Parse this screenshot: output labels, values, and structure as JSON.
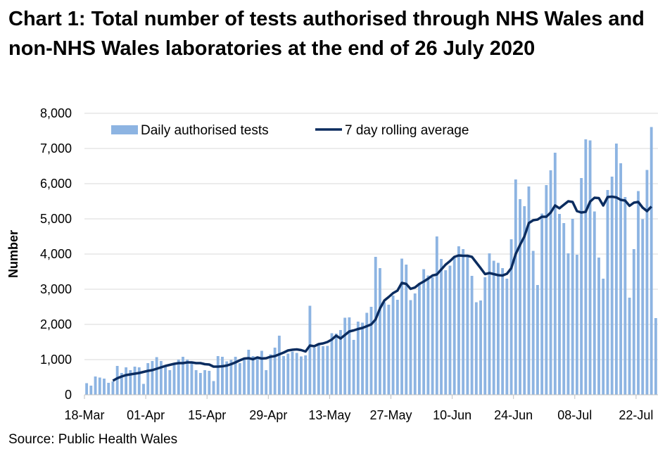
{
  "chart_data": {
    "type": "bar",
    "title": "Chart 1: Total number of tests authorised through NHS Wales and non-NHS Wales laboratories at the end of 26 July 2020",
    "source": "Source: Public Health Wales",
    "ylabel": "Number",
    "ylim": [
      0,
      8000
    ],
    "yticks": [
      "0",
      "1,000",
      "2,000",
      "3,000",
      "4,000",
      "5,000",
      "6,000",
      "7,000",
      "8,000"
    ],
    "ytick_values": [
      0,
      1000,
      2000,
      3000,
      4000,
      5000,
      6000,
      7000,
      8000
    ],
    "xticks": [
      "18-Mar",
      "01-Apr",
      "15-Apr",
      "29-Apr",
      "13-May",
      "27-May",
      "10-Jun",
      "24-Jun",
      "08-Jul",
      "22-Jul"
    ],
    "xtick_day_index": [
      0,
      14,
      28,
      42,
      56,
      70,
      84,
      98,
      112,
      126
    ],
    "start_label": "18-Mar",
    "end_label": "26-Jul",
    "legend": [
      "Daily authorised tests",
      "7 day rolling average"
    ],
    "legend_position": "top",
    "colors": {
      "bars": "#8db4e2",
      "line": "#0b2c5f"
    },
    "series": [
      {
        "name": "Daily authorised tests",
        "type": "bar",
        "values": [
          330,
          260,
          520,
          490,
          460,
          340,
          380,
          820,
          620,
          780,
          700,
          800,
          780,
          310,
          900,
          960,
          1070,
          960,
          820,
          700,
          850,
          1000,
          1080,
          1000,
          900,
          700,
          620,
          700,
          680,
          390,
          1100,
          1080,
          950,
          990,
          1080,
          900,
          1040,
          1280,
          1100,
          1080,
          1250,
          700,
          1150,
          1340,
          1680,
          1100,
          1170,
          1230,
          1190,
          1090,
          1120,
          2530,
          1340,
          1460,
          1380,
          1390,
          1750,
          1740,
          1840,
          2190,
          2200,
          1560,
          2080,
          2050,
          2330,
          2500,
          3920,
          3600,
          2630,
          2560,
          2820,
          2700,
          3870,
          3700,
          2690,
          2880,
          3160,
          3570,
          3390,
          3340,
          4500,
          3860,
          3540,
          3670,
          3920,
          4220,
          4140,
          3920,
          3380,
          2630,
          2680,
          3340,
          4020,
          3810,
          3750,
          3600,
          3300,
          4420,
          6120,
          5560,
          5360,
          5920,
          4090,
          3120,
          5150,
          5960,
          6380,
          6880,
          5140,
          4880,
          4020,
          5000,
          3980,
          6160,
          7260,
          7230,
          5210,
          3900,
          3300,
          5820,
          6200,
          7140,
          6580,
          5620,
          2760,
          4140,
          5790,
          4990,
          6390,
          7610,
          2180
        ]
      },
      {
        "name": "7 day rolling average",
        "type": "line",
        "start_index": 6,
        "values": [
          400,
          470,
          520,
          560,
          580,
          600,
          620,
          650,
          680,
          700,
          740,
          780,
          820,
          850,
          880,
          900,
          900,
          920,
          920,
          900,
          900,
          870,
          860,
          800,
          800,
          810,
          830,
          870,
          920,
          980,
          1030,
          1040,
          1010,
          1060,
          1030,
          1040,
          1080,
          1100,
          1150,
          1200,
          1260,
          1280,
          1290,
          1270,
          1230,
          1400,
          1380,
          1440,
          1460,
          1500,
          1570,
          1680,
          1600,
          1700,
          1800,
          1830,
          1870,
          1900,
          1950,
          2000,
          2140,
          2450,
          2680,
          2780,
          2890,
          2960,
          3180,
          3150,
          3010,
          3050,
          3150,
          3220,
          3300,
          3390,
          3420,
          3560,
          3700,
          3800,
          3920,
          3960,
          3950,
          3950,
          3920,
          3760,
          3600,
          3430,
          3460,
          3430,
          3400,
          3390,
          3440,
          3600,
          4000,
          4260,
          4500,
          4880,
          4960,
          4980,
          5060,
          5060,
          5180,
          5380,
          5300,
          5400,
          5500,
          5480,
          5220,
          5180,
          5200,
          5490,
          5600,
          5590,
          5380,
          5620,
          5630,
          5610,
          5540,
          5520,
          5370,
          5460,
          5480,
          5320,
          5220,
          5350
        ]
      }
    ]
  }
}
